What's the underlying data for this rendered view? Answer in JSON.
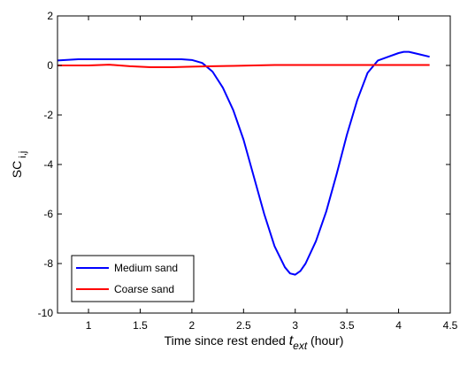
{
  "chart_data": {
    "type": "line",
    "title": "",
    "xlabel": {
      "main": "Time since rest ended ",
      "var": "t",
      "sub": "ext",
      "unit": " (hour)"
    },
    "ylabel": {
      "main": "SC",
      "sub": "i,j"
    },
    "xlim": [
      0.7,
      4.5
    ],
    "ylim": [
      -10,
      2
    ],
    "xticks": [
      "1",
      "1.5",
      "2",
      "2.5",
      "3",
      "3.5",
      "4",
      "4.5"
    ],
    "yticks": [
      "2",
      "0",
      "-2",
      "-4",
      "-6",
      "-8",
      "-10"
    ],
    "grid": false,
    "legend_position": "bottom-left",
    "series": [
      {
        "name": "Medium sand",
        "color": "#0000ff",
        "x": [
          0.7,
          0.9,
          1.1,
          1.3,
          1.5,
          1.7,
          1.9,
          2.0,
          2.1,
          2.2,
          2.3,
          2.4,
          2.5,
          2.6,
          2.7,
          2.8,
          2.9,
          2.95,
          3.0,
          3.05,
          3.1,
          3.2,
          3.3,
          3.4,
          3.5,
          3.6,
          3.7,
          3.8,
          3.9,
          4.0,
          4.05,
          4.1,
          4.2,
          4.3
        ],
        "y": [
          0.2,
          0.25,
          0.25,
          0.25,
          0.25,
          0.25,
          0.25,
          0.22,
          0.1,
          -0.25,
          -0.9,
          -1.8,
          -3.0,
          -4.5,
          -6.0,
          -7.3,
          -8.15,
          -8.4,
          -8.45,
          -8.3,
          -8.0,
          -7.1,
          -5.9,
          -4.4,
          -2.8,
          -1.4,
          -0.3,
          0.2,
          0.35,
          0.5,
          0.55,
          0.55,
          0.45,
          0.35
        ]
      },
      {
        "name": "Coarse sand",
        "color": "#ff0000",
        "x": [
          0.7,
          1.0,
          1.2,
          1.4,
          1.6,
          1.8,
          2.0,
          2.2,
          2.4,
          2.6,
          2.8,
          3.0,
          3.5,
          4.0,
          4.3
        ],
        "y": [
          0.0,
          0.0,
          0.03,
          -0.03,
          -0.07,
          -0.07,
          -0.05,
          -0.03,
          -0.02,
          0.0,
          0.02,
          0.02,
          0.02,
          0.02,
          0.02
        ]
      }
    ]
  }
}
